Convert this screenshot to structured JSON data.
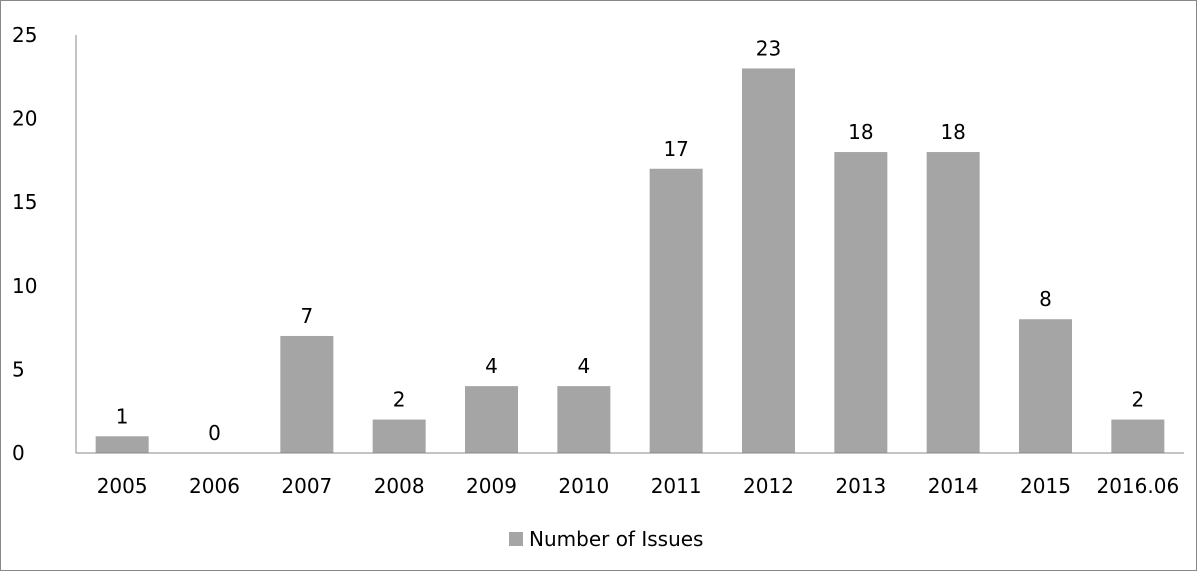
{
  "chart_data": {
    "type": "bar",
    "categories": [
      "2005",
      "2006",
      "2007",
      "2008",
      "2009",
      "2010",
      "2011",
      "2012",
      "2013",
      "2014",
      "2015",
      "2016.06"
    ],
    "series": [
      {
        "name": "Number of Issues",
        "values": [
          1,
          0,
          7,
          2,
          4,
          4,
          17,
          23,
          18,
          18,
          8,
          2
        ],
        "color": "#a5a5a5"
      }
    ],
    "y_ticks": [
      "0",
      "5",
      "10",
      "15",
      "20",
      "25"
    ],
    "ylim": [
      0,
      25
    ],
    "title": "",
    "xlabel": "",
    "ylabel": "",
    "grid": false,
    "data_labels": true,
    "legend_position": "bottom"
  }
}
